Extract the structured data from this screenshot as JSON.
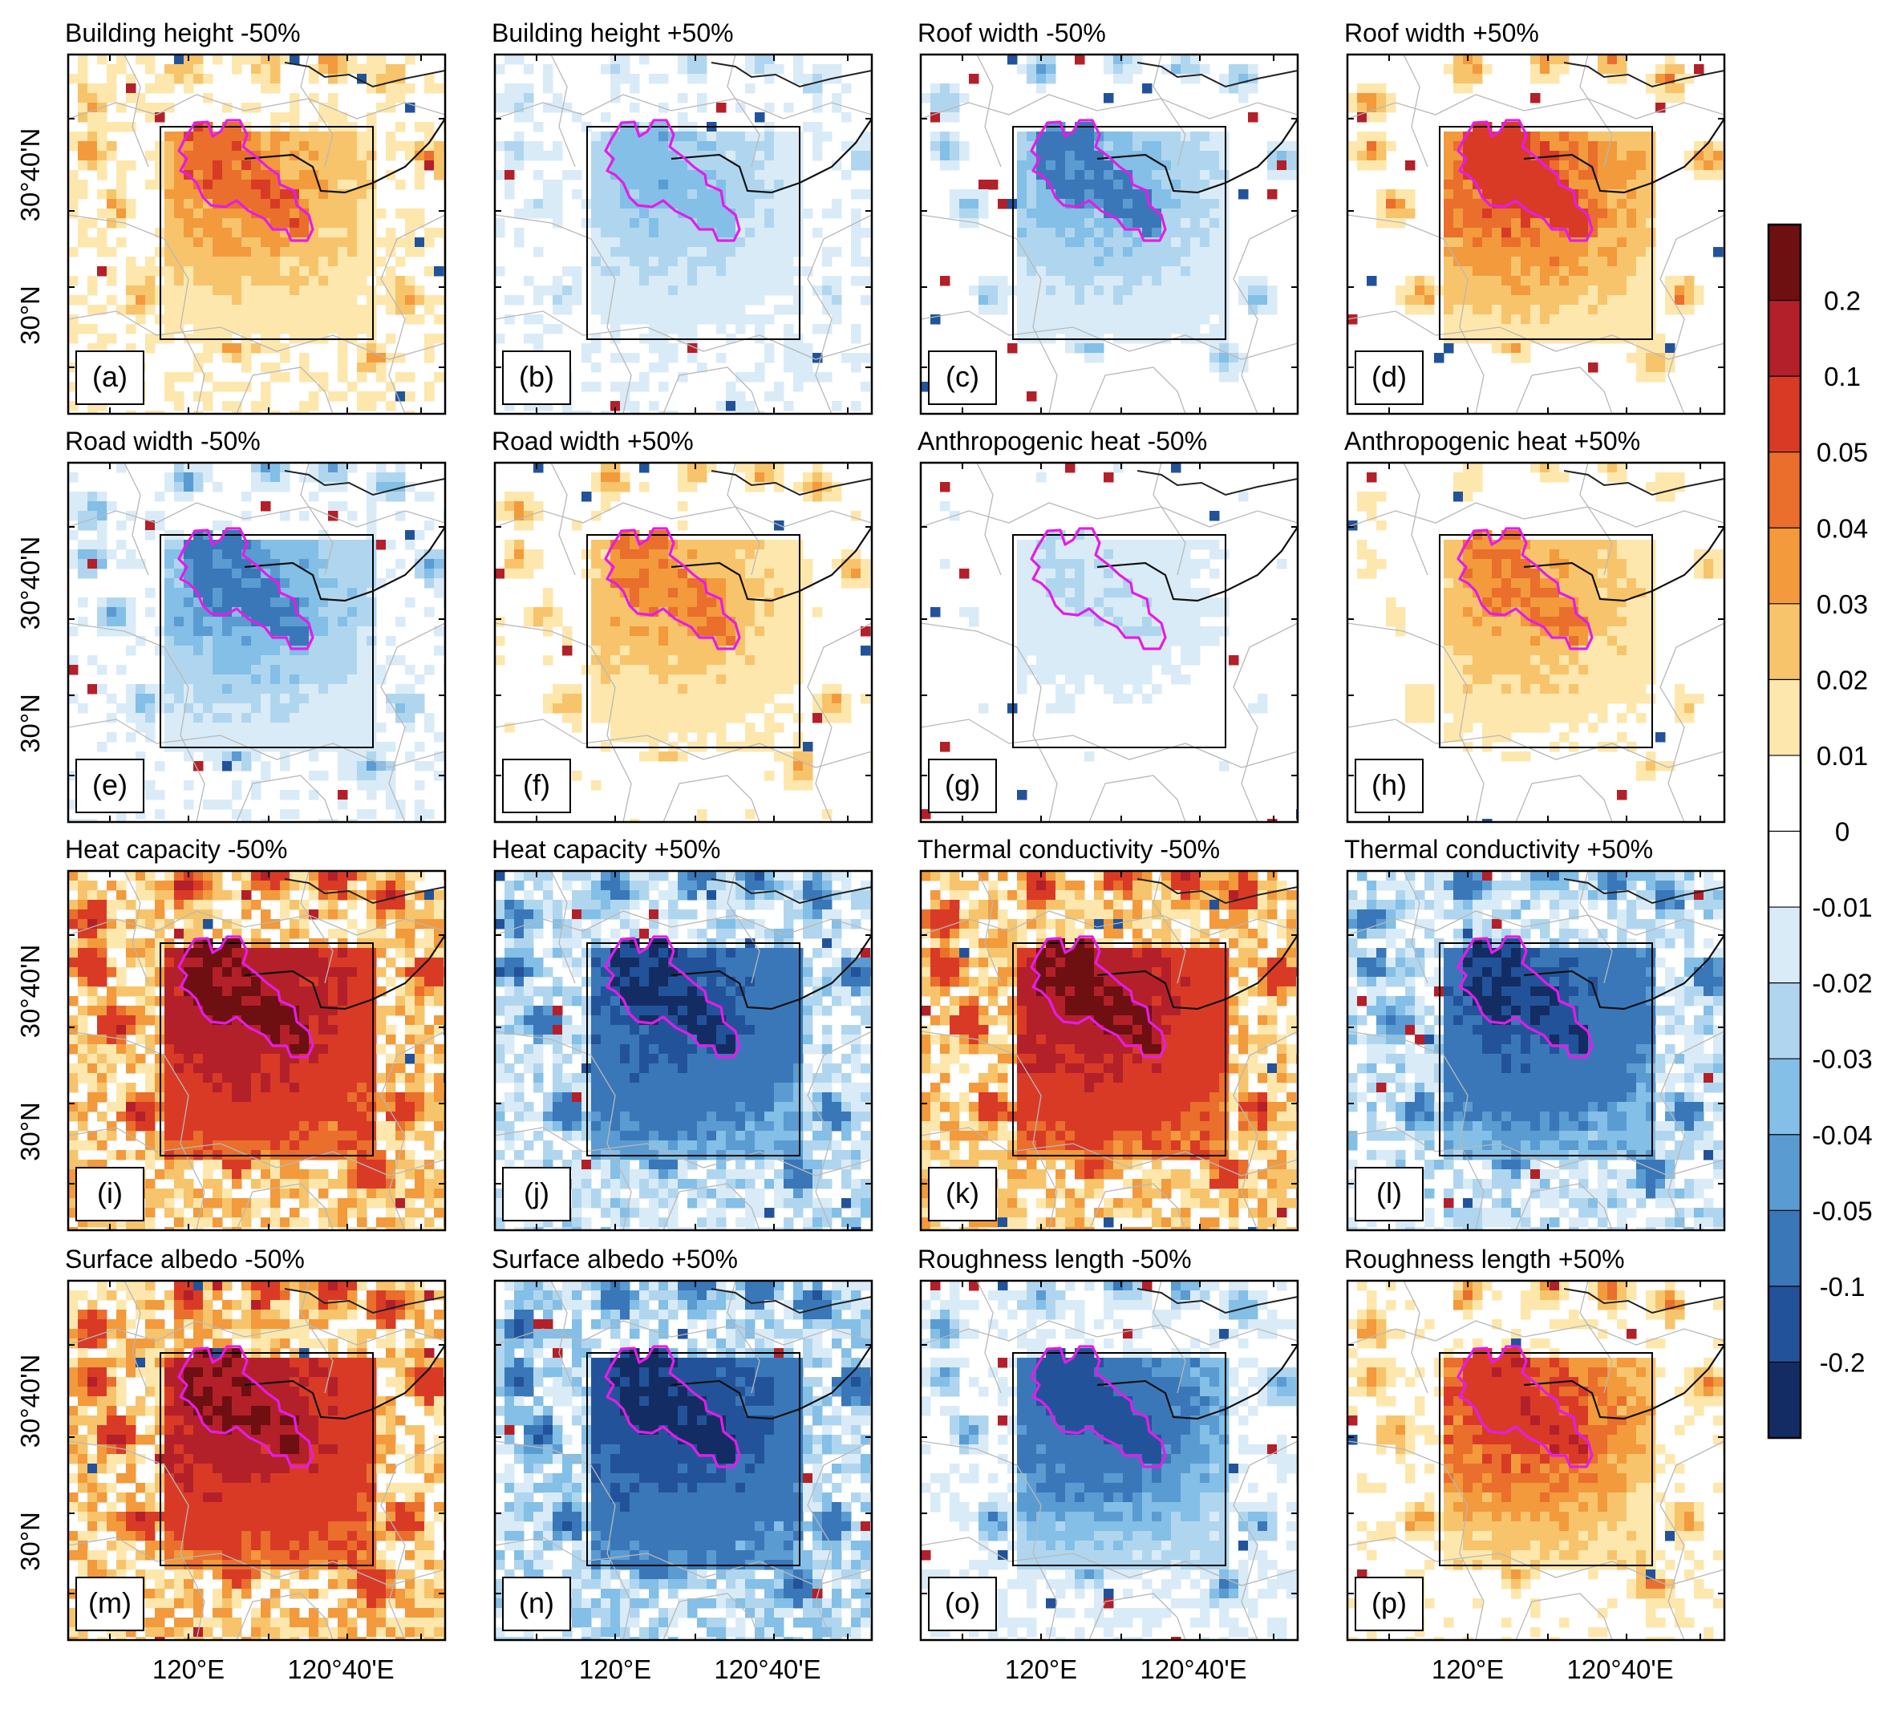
{
  "figure": {
    "panels": [
      {
        "label": "(a)",
        "title": "Building height -50%",
        "field": "bh_minus"
      },
      {
        "label": "(b)",
        "title": "Building height +50%",
        "field": "bh_plus"
      },
      {
        "label": "(c)",
        "title": "Roof width -50%",
        "field": "rw_minus"
      },
      {
        "label": "(d)",
        "title": "Roof width +50%",
        "field": "rw_plus"
      },
      {
        "label": "(e)",
        "title": "Road width -50%",
        "field": "rdw_minus"
      },
      {
        "label": "(f)",
        "title": "Road width +50%",
        "field": "rdw_plus"
      },
      {
        "label": "(g)",
        "title": "Anthropogenic heat -50%",
        "field": "ah_minus"
      },
      {
        "label": "(h)",
        "title": "Anthropogenic heat +50%",
        "field": "ah_plus"
      },
      {
        "label": "(i)",
        "title": "Heat capacity -50%",
        "field": "hc_minus"
      },
      {
        "label": "(j)",
        "title": "Heat capacity +50%",
        "field": "hc_plus"
      },
      {
        "label": "(k)",
        "title": "Thermal conductivity -50%",
        "field": "tc_minus"
      },
      {
        "label": "(l)",
        "title": "Thermal conductivity +50%",
        "field": "tc_plus"
      },
      {
        "label": "(m)",
        "title": "Surface albedo -50%",
        "field": "sa_minus"
      },
      {
        "label": "(n)",
        "title": "Surface albedo +50%",
        "field": "sa_plus"
      },
      {
        "label": "(o)",
        "title": "Roughness length -50%",
        "field": "rl_minus"
      },
      {
        "label": "(p)",
        "title": "Roughness length +50%",
        "field": "rl_plus"
      }
    ],
    "y_tick_labels": [
      "30°40'N",
      "30°N"
    ],
    "x_tick_labels": [
      "120°E",
      "120°40'E"
    ]
  },
  "chart_data": {
    "type": "heatmap",
    "description_kind": "4x4 grid of spatial difference maps",
    "colorbar": {
      "ticks": [
        "0.2",
        "0.1",
        "0.05",
        "0.04",
        "0.03",
        "0.02",
        "0.01",
        "0",
        "-0.01",
        "-0.02",
        "-0.03",
        "-0.04",
        "-0.05",
        "-0.1",
        "-0.2"
      ],
      "colors": [
        "#6e0f12",
        "#b3202a",
        "#d93a26",
        "#ea6e2c",
        "#f29a3c",
        "#f7c46b",
        "#fde7ad",
        "#ffffff",
        "#ffffff",
        "#d9ebf7",
        "#b0d6ef",
        "#83bfe6",
        "#5a9bd2",
        "#3a77b9",
        "#22539a",
        "#142c64"
      ]
    },
    "x_ticks": [
      "120°E",
      "120°40'E"
    ],
    "y_ticks": [
      "30°40'N",
      "30°N"
    ],
    "fields": {
      "bh_minus": {
        "city": 0.045,
        "box": 0.03,
        "background": 0.012,
        "blobs": 0.03
      },
      "bh_plus": {
        "city": -0.035,
        "box": -0.025,
        "background": -0.01,
        "blobs": -0.02
      },
      "rw_minus": {
        "city": -0.055,
        "box": -0.03,
        "background": -0.005,
        "blobs": -0.04
      },
      "rw_plus": {
        "city": 0.07,
        "box": 0.04,
        "background": 0.006,
        "blobs": 0.04
      },
      "rdw_minus": {
        "city": -0.055,
        "box": -0.035,
        "background": -0.01,
        "blobs": -0.04
      },
      "rdw_plus": {
        "city": 0.04,
        "box": 0.025,
        "background": 0.008,
        "blobs": 0.03
      },
      "ah_minus": {
        "city": -0.02,
        "box": -0.015,
        "background": -0.004,
        "blobs": -0.01
      },
      "ah_plus": {
        "city": 0.04,
        "box": 0.025,
        "background": 0.005,
        "blobs": 0.02
      },
      "hc_minus": {
        "city": 0.22,
        "box": 0.12,
        "background": 0.03,
        "blobs": 0.1
      },
      "hc_plus": {
        "city": -0.2,
        "box": -0.1,
        "background": -0.025,
        "blobs": -0.08
      },
      "tc_minus": {
        "city": 0.21,
        "box": 0.11,
        "background": 0.03,
        "blobs": 0.09
      },
      "tc_plus": {
        "city": -0.2,
        "box": -0.09,
        "background": -0.025,
        "blobs": -0.07
      },
      "sa_minus": {
        "city": 0.2,
        "box": 0.11,
        "background": 0.03,
        "blobs": 0.1
      },
      "sa_plus": {
        "city": -0.22,
        "box": -0.12,
        "background": -0.03,
        "blobs": -0.1
      },
      "rl_minus": {
        "city": -0.12,
        "box": -0.06,
        "background": -0.012,
        "blobs": -0.05
      },
      "rl_plus": {
        "city": 0.09,
        "box": 0.045,
        "background": 0.01,
        "blobs": 0.04
      }
    }
  }
}
